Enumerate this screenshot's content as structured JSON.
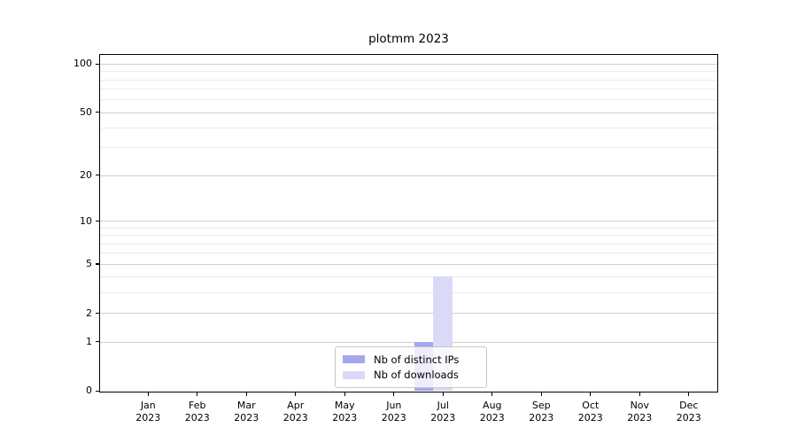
{
  "title": "plotmm 2023",
  "colors": {
    "background": "#ffffff",
    "spine": "#000000",
    "grid_major": "#cfcfcf",
    "grid_minor": "#ececec",
    "legend_border": "#c8c8c8",
    "distinct_ips_bar": "#a5a5ef",
    "downloads_bar": "#dadaf8"
  },
  "chart_data": {
    "type": "bar",
    "title": "plotmm 2023",
    "categories": [
      "Jan",
      "Feb",
      "Mar",
      "Apr",
      "May",
      "Jun",
      "Jul",
      "Aug",
      "Sep",
      "Oct",
      "Nov",
      "Dec"
    ],
    "year_label": "2023",
    "series": [
      {
        "name": "Nb of distinct IPs",
        "color": "#a5a5ef",
        "values": [
          0,
          0,
          0,
          0,
          0,
          0,
          1,
          0,
          0,
          0,
          0,
          0
        ]
      },
      {
        "name": "Nb of downloads",
        "color": "#dadaf8",
        "values": [
          0,
          0,
          0,
          0,
          0,
          0,
          4,
          0,
          0,
          0,
          0,
          0
        ]
      }
    ],
    "yscale": "log1p",
    "ylim": [
      0,
      113
    ],
    "yticks": [
      100,
      50,
      20,
      10,
      5,
      2,
      1,
      0
    ],
    "minor_gridline_values": [
      3,
      4,
      6,
      7,
      8,
      9,
      30,
      40,
      60,
      70,
      80,
      90
    ],
    "grid": true,
    "legend_position": "lower center"
  }
}
